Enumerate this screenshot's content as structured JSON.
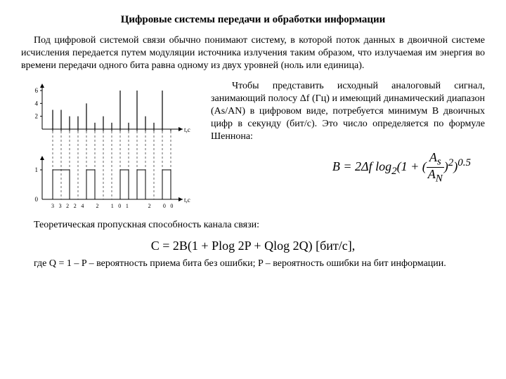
{
  "title": "Цифровые системы передачи и обработки информации",
  "intro": "Под цифровой системой связи обычно понимают систему, в которой поток данных в двоичной системе исчисления передается путем модуляции источника излучения таким образом, что излучаемая им энергия во времени передачи одного бита равна одному из двух уровней (ноль или единица).",
  "side_text": "Чтобы представить исходный аналоговый сигнал, занимающий полосу  Δf (Гц) и имеющий динамический диапазон (As/AN) в цифровом виде, потребуется минимум B двоичных цифр в секунду (бит/с). Это число определяется по формуле Шеннона:",
  "formula_img": "B = 2Δf log₂(1 + (Aₛ / A_N)²)⁰·⁵",
  "capacity_label": "Теоретическая пропускная способность канала связи:",
  "formula_c": "C = 2B(1 + Plog 2P + Qlog 2Q)   [бит/c],",
  "footnote": "где  Q = 1 – P – вероятность приема бита без ошибки; P – вероятность ошибки на бит информации.",
  "chart": {
    "y_ticks_top": [
      "6",
      "4",
      "2"
    ],
    "y_ticks_bot": [
      "1",
      "0"
    ],
    "x_label": "t,c",
    "samples_values": [
      3,
      3,
      2,
      2,
      4,
      1,
      2,
      1,
      6,
      1,
      6,
      2,
      1,
      6,
      0
    ],
    "binary_seq": [
      "3",
      "3",
      "2",
      "2",
      "4",
      "",
      "2",
      "",
      "1",
      "0",
      "1",
      "",
      "",
      "2",
      "",
      "0",
      "0"
    ],
    "axis_color": "#000",
    "dash_color": "#000",
    "bg": "#fff"
  }
}
